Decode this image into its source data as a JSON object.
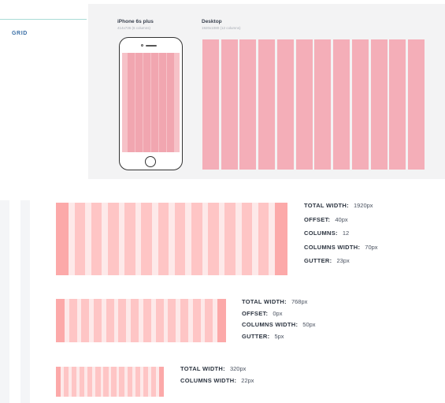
{
  "section": {
    "label": "GRID"
  },
  "devices": {
    "iphone": {
      "title": "iPhone 6s plus",
      "subtitle": "414x736 (6 columns)",
      "columns": 6
    },
    "desktop": {
      "title": "Desktop",
      "subtitle": "1920x1080 (12 columns)",
      "columns": 12
    }
  },
  "grids": [
    {
      "columns": 12,
      "specs": [
        {
          "label": "TOTAL WIDTH:",
          "value": "1920px"
        },
        {
          "label": "OFFSET:",
          "value": "40px"
        },
        {
          "label": "COLUMNS:",
          "value": "12"
        },
        {
          "label": "COLUMNS WIDTH:",
          "value": "70px"
        },
        {
          "label": "GUTTER:",
          "value": "23px"
        }
      ]
    },
    {
      "columns": 12,
      "specs": [
        {
          "label": "TOTAL WIDTH:",
          "value": "768px"
        },
        {
          "label": "OFFSET:",
          "value": "0px"
        },
        {
          "label": "COLUMNS WIDTH:",
          "value": "50px"
        },
        {
          "label": "GUTTER:",
          "value": "5px"
        }
      ]
    },
    {
      "columns": 12,
      "specs": [
        {
          "label": "TOTAL WIDTH:",
          "value": "320px"
        },
        {
          "label": "COLUMNS WIDTH:",
          "value": "22px"
        }
      ]
    }
  ]
}
